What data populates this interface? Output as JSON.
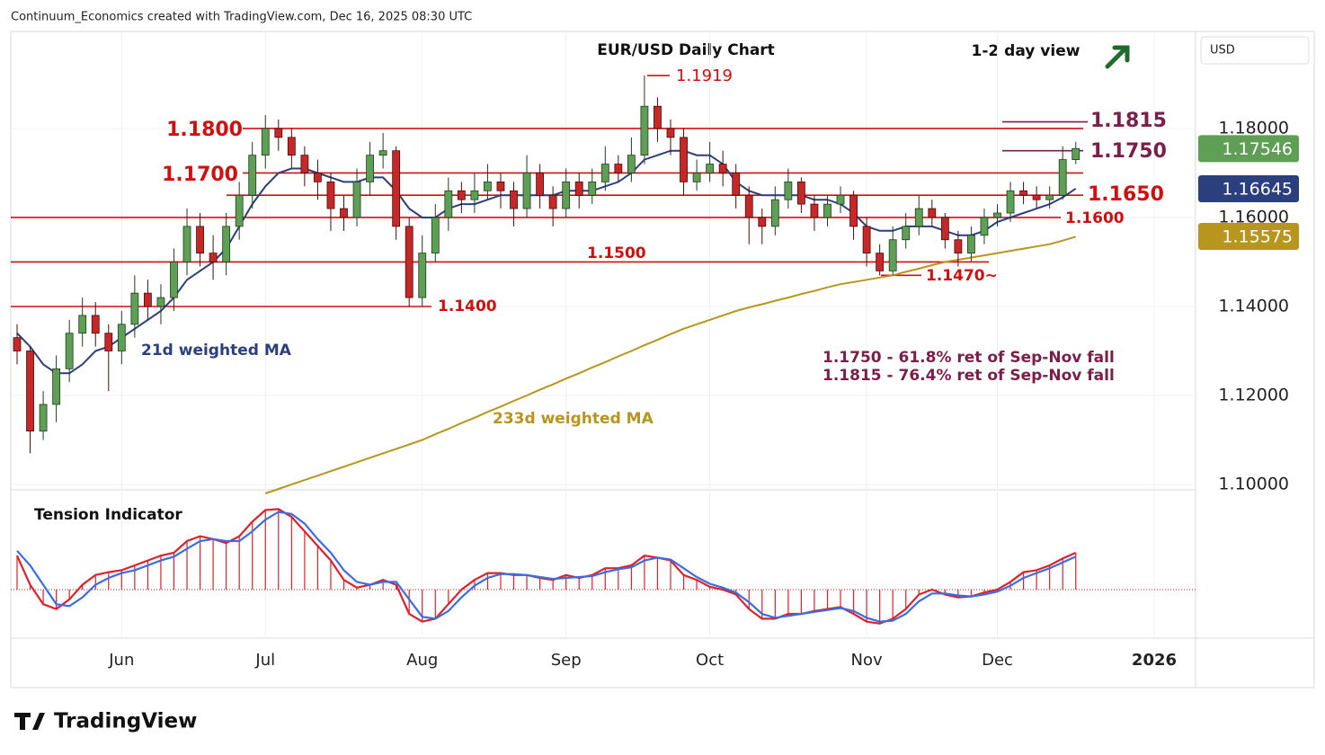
{
  "chart_data": {
    "type": "candlestick",
    "header": "Continuum_Economics created with TradingView.com, Dec 16, 2025 08:30 UTC",
    "title": "EUR/USD Daily Chart",
    "view": "1-2 day view",
    "currency": "USD",
    "brand": "TradingView",
    "ylim": [
      1.0988,
      1.2018
    ],
    "yticks": [
      {
        "value": 1.1,
        "label": "1.10000"
      },
      {
        "value": 1.12,
        "label": "1.12000"
      },
      {
        "value": 1.14,
        "label": "1.14000"
      },
      {
        "value": 1.16,
        "label": "1.16000"
      },
      {
        "value": 1.18,
        "label": "1.18000"
      }
    ],
    "grid": true,
    "categories": [
      null,
      null,
      null,
      null,
      null,
      null,
      null,
      null,
      "Jun",
      null,
      null,
      null,
      null,
      null,
      null,
      null,
      null,
      null,
      null,
      "Jul",
      null,
      null,
      null,
      null,
      null,
      null,
      null,
      null,
      null,
      null,
      null,
      "Aug",
      null,
      null,
      null,
      null,
      null,
      null,
      null,
      null,
      null,
      null,
      "Sep",
      null,
      null,
      null,
      null,
      null,
      null,
      null,
      null,
      null,
      null,
      "Oct",
      null,
      null,
      null,
      null,
      null,
      null,
      null,
      null,
      null,
      null,
      null,
      "Nov",
      null,
      null,
      null,
      null,
      null,
      null,
      null,
      null,
      null,
      "Dec",
      null,
      null,
      null,
      null,
      null,
      null,
      null,
      null,
      null,
      null,
      null,
      "2026"
    ],
    "up_color": "#5f9e55",
    "down_color": "#c62828",
    "ohlc": [
      [
        1.133,
        1.136,
        1.127,
        1.13
      ],
      [
        1.13,
        1.131,
        1.107,
        1.112
      ],
      [
        1.112,
        1.121,
        1.11,
        1.118
      ],
      [
        1.118,
        1.129,
        1.114,
        1.126
      ],
      [
        1.126,
        1.137,
        1.123,
        1.134
      ],
      [
        1.134,
        1.142,
        1.131,
        1.138
      ],
      [
        1.138,
        1.141,
        1.131,
        1.134
      ],
      [
        1.134,
        1.136,
        1.121,
        1.13
      ],
      [
        1.13,
        1.139,
        1.127,
        1.136
      ],
      [
        1.136,
        1.147,
        1.133,
        1.143
      ],
      [
        1.143,
        1.146,
        1.137,
        1.14
      ],
      [
        1.14,
        1.145,
        1.136,
        1.142
      ],
      [
        1.142,
        1.153,
        1.139,
        1.15
      ],
      [
        1.15,
        1.162,
        1.147,
        1.158
      ],
      [
        1.158,
        1.161,
        1.149,
        1.152
      ],
      [
        1.152,
        1.156,
        1.146,
        1.15
      ],
      [
        1.15,
        1.161,
        1.147,
        1.158
      ],
      [
        1.158,
        1.168,
        1.155,
        1.165
      ],
      [
        1.165,
        1.177,
        1.162,
        1.174
      ],
      [
        1.174,
        1.183,
        1.171,
        1.18
      ],
      [
        1.18,
        1.182,
        1.175,
        1.178
      ],
      [
        1.178,
        1.18,
        1.171,
        1.174
      ],
      [
        1.174,
        1.176,
        1.167,
        1.17
      ],
      [
        1.17,
        1.173,
        1.164,
        1.168
      ],
      [
        1.168,
        1.17,
        1.157,
        1.162
      ],
      [
        1.162,
        1.165,
        1.157,
        1.16
      ],
      [
        1.16,
        1.171,
        1.158,
        1.168
      ],
      [
        1.168,
        1.177,
        1.165,
        1.174
      ],
      [
        1.174,
        1.179,
        1.171,
        1.175
      ],
      [
        1.175,
        1.176,
        1.155,
        1.158
      ],
      [
        1.158,
        1.16,
        1.14,
        1.142
      ],
      [
        1.142,
        1.156,
        1.14,
        1.152
      ],
      [
        1.152,
        1.163,
        1.15,
        1.16
      ],
      [
        1.16,
        1.169,
        1.157,
        1.166
      ],
      [
        1.166,
        1.168,
        1.161,
        1.164
      ],
      [
        1.164,
        1.17,
        1.161,
        1.166
      ],
      [
        1.166,
        1.172,
        1.164,
        1.168
      ],
      [
        1.168,
        1.17,
        1.162,
        1.166
      ],
      [
        1.166,
        1.168,
        1.158,
        1.162
      ],
      [
        1.162,
        1.174,
        1.16,
        1.17
      ],
      [
        1.17,
        1.172,
        1.162,
        1.165
      ],
      [
        1.165,
        1.167,
        1.158,
        1.162
      ],
      [
        1.162,
        1.171,
        1.16,
        1.168
      ],
      [
        1.168,
        1.17,
        1.162,
        1.165
      ],
      [
        1.165,
        1.171,
        1.163,
        1.168
      ],
      [
        1.168,
        1.176,
        1.166,
        1.172
      ],
      [
        1.172,
        1.174,
        1.168,
        1.17
      ],
      [
        1.17,
        1.178,
        1.168,
        1.174
      ],
      [
        1.174,
        1.1919,
        1.172,
        1.185
      ],
      [
        1.185,
        1.187,
        1.177,
        1.18
      ],
      [
        1.18,
        1.182,
        1.174,
        1.178
      ],
      [
        1.178,
        1.18,
        1.165,
        1.168
      ],
      [
        1.168,
        1.173,
        1.166,
        1.17
      ],
      [
        1.17,
        1.177,
        1.168,
        1.172
      ],
      [
        1.172,
        1.175,
        1.167,
        1.17
      ],
      [
        1.17,
        1.172,
        1.162,
        1.165
      ],
      [
        1.165,
        1.167,
        1.154,
        1.16
      ],
      [
        1.16,
        1.162,
        1.154,
        1.158
      ],
      [
        1.158,
        1.167,
        1.156,
        1.164
      ],
      [
        1.164,
        1.171,
        1.162,
        1.168
      ],
      [
        1.168,
        1.169,
        1.161,
        1.163
      ],
      [
        1.163,
        1.165,
        1.157,
        1.16
      ],
      [
        1.16,
        1.165,
        1.158,
        1.163
      ],
      [
        1.163,
        1.167,
        1.161,
        1.165
      ],
      [
        1.165,
        1.166,
        1.155,
        1.158
      ],
      [
        1.158,
        1.16,
        1.149,
        1.152
      ],
      [
        1.152,
        1.154,
        1.147,
        1.148
      ],
      [
        1.148,
        1.158,
        1.147,
        1.155
      ],
      [
        1.155,
        1.161,
        1.153,
        1.158
      ],
      [
        1.158,
        1.165,
        1.156,
        1.162
      ],
      [
        1.162,
        1.164,
        1.158,
        1.16
      ],
      [
        1.16,
        1.161,
        1.153,
        1.155
      ],
      [
        1.155,
        1.157,
        1.149,
        1.152
      ],
      [
        1.152,
        1.158,
        1.15,
        1.156
      ],
      [
        1.156,
        1.162,
        1.154,
        1.16
      ],
      [
        1.16,
        1.163,
        1.158,
        1.161
      ],
      [
        1.161,
        1.168,
        1.159,
        1.166
      ],
      [
        1.166,
        1.168,
        1.163,
        1.165
      ],
      [
        1.165,
        1.167,
        1.162,
        1.164
      ],
      [
        1.164,
        1.167,
        1.162,
        1.165
      ],
      [
        1.165,
        1.176,
        1.164,
        1.173
      ],
      [
        1.173,
        1.177,
        1.172,
        1.1755
      ],
      null,
      null,
      null,
      null,
      null,
      null
    ],
    "series": [
      {
        "name": "21d weighted MA",
        "color": "#2b3f7e",
        "values": [
          1.134,
          1.131,
          1.127,
          1.125,
          1.125,
          1.127,
          1.13,
          1.131,
          1.133,
          1.135,
          1.137,
          1.139,
          1.142,
          1.146,
          1.148,
          1.15,
          1.153,
          1.158,
          1.163,
          1.167,
          1.17,
          1.171,
          1.171,
          1.17,
          1.169,
          1.168,
          1.168,
          1.169,
          1.169,
          1.166,
          1.162,
          1.16,
          1.16,
          1.162,
          1.163,
          1.163,
          1.164,
          1.165,
          1.165,
          1.165,
          1.165,
          1.165,
          1.166,
          1.166,
          1.166,
          1.167,
          1.168,
          1.17,
          1.173,
          1.174,
          1.175,
          1.175,
          1.174,
          1.174,
          1.172,
          1.168,
          1.166,
          1.165,
          1.165,
          1.165,
          1.165,
          1.164,
          1.164,
          1.163,
          1.161,
          1.158,
          1.157,
          1.157,
          1.158,
          1.158,
          1.158,
          1.157,
          1.156,
          1.156,
          1.157,
          1.159,
          1.16,
          1.161,
          1.162,
          1.163,
          1.1645,
          1.1665,
          null,
          null,
          null,
          null,
          null,
          null
        ]
      },
      {
        "name": "233d weighted MA",
        "color": "#b8961e",
        "values": [
          null,
          null,
          null,
          null,
          null,
          null,
          null,
          null,
          null,
          null,
          null,
          null,
          null,
          null,
          null,
          null,
          null,
          null,
          null,
          1.098,
          1.099,
          1.1,
          1.101,
          1.102,
          1.103,
          1.104,
          1.105,
          1.106,
          1.107,
          1.108,
          1.109,
          1.11,
          1.1113,
          1.1125,
          1.1138,
          1.115,
          1.1163,
          1.1175,
          1.1188,
          1.12,
          1.1213,
          1.1225,
          1.1238,
          1.125,
          1.1263,
          1.1275,
          1.1288,
          1.13,
          1.1313,
          1.1325,
          1.1338,
          1.135,
          1.136,
          1.137,
          1.138,
          1.139,
          1.1398,
          1.1405,
          1.1413,
          1.142,
          1.1428,
          1.1435,
          1.1443,
          1.145,
          1.1455,
          1.146,
          1.1465,
          1.147,
          1.1478,
          1.1485,
          1.1493,
          1.15,
          1.1505,
          1.151,
          1.1515,
          1.152,
          1.1525,
          1.153,
          1.1535,
          1.154,
          1.1548,
          1.1557,
          null,
          null,
          null,
          null,
          null,
          null
        ]
      }
    ],
    "price_badges": [
      {
        "value": 1.17546,
        "color": "#5f9e55"
      },
      {
        "value": 1.16645,
        "color": "#2b3f7e"
      },
      {
        "value": 1.15575,
        "color": "#b8961e"
      }
    ],
    "levels": [
      {
        "value": 1.1919,
        "label": "1.1919",
        "color": "#d01010"
      },
      {
        "value": 1.18,
        "label": "1.1800",
        "color": "#d01010"
      },
      {
        "value": 1.17,
        "label": "1.1700",
        "color": "#d01010"
      },
      {
        "value": 1.165,
        "label": "1.1650",
        "color": "#d01010"
      },
      {
        "value": 1.16,
        "label": "1.1600",
        "color": "#d01010"
      },
      {
        "value": 1.15,
        "label": "1.1500",
        "color": "#d01010"
      },
      {
        "value": 1.14,
        "label": "1.1400",
        "color": "#d01010"
      },
      {
        "value": 1.147,
        "label": "1.1470~",
        "color": "#d01010"
      },
      {
        "value": 1.1815,
        "label": "1.1815",
        "color": "#7b1e4a"
      },
      {
        "value": 1.175,
        "label": "1.1750",
        "color": "#7b1e4a"
      }
    ],
    "notes": [
      "1.1750 - 61.8% ret of Sep-Nov fall",
      "1.1815 - 76.4% ret of Sep-Nov fall"
    ],
    "tension": {
      "title": "Tension Indicator",
      "ylim": [
        -0.5,
        1.0
      ],
      "series": [
        {
          "color": "#e0202a",
          "values": [
            0.35,
            0.05,
            -0.15,
            -0.2,
            -0.1,
            0.05,
            0.15,
            0.18,
            0.2,
            0.25,
            0.3,
            0.35,
            0.38,
            0.5,
            0.55,
            0.52,
            0.48,
            0.55,
            0.7,
            0.82,
            0.83,
            0.75,
            0.6,
            0.45,
            0.3,
            0.1,
            0.02,
            0.05,
            0.1,
            0.05,
            -0.25,
            -0.33,
            -0.3,
            -0.15,
            0.0,
            0.1,
            0.17,
            0.17,
            0.15,
            0.15,
            0.12,
            0.1,
            0.15,
            0.12,
            0.15,
            0.22,
            0.22,
            0.25,
            0.35,
            0.33,
            0.3,
            0.15,
            0.1,
            0.03,
            0.0,
            -0.05,
            -0.2,
            -0.3,
            -0.3,
            -0.25,
            -0.25,
            -0.22,
            -0.2,
            -0.18,
            -0.25,
            -0.33,
            -0.35,
            -0.3,
            -0.2,
            -0.05,
            0.0,
            -0.05,
            -0.08,
            -0.07,
            -0.03,
            0.0,
            0.08,
            0.18,
            0.2,
            0.25,
            0.32,
            0.38,
            null,
            null,
            null,
            null,
            null,
            null
          ]
        },
        {
          "color": "#3a6ee0",
          "values": [
            0.4,
            0.25,
            0.05,
            -0.15,
            -0.17,
            -0.08,
            0.05,
            0.12,
            0.17,
            0.2,
            0.25,
            0.3,
            0.34,
            0.42,
            0.5,
            0.52,
            0.5,
            0.5,
            0.6,
            0.72,
            0.8,
            0.78,
            0.68,
            0.52,
            0.38,
            0.2,
            0.08,
            0.05,
            0.08,
            0.08,
            -0.1,
            -0.28,
            -0.3,
            -0.22,
            -0.08,
            0.04,
            0.12,
            0.16,
            0.16,
            0.15,
            0.13,
            0.11,
            0.12,
            0.13,
            0.14,
            0.18,
            0.21,
            0.23,
            0.3,
            0.33,
            0.31,
            0.22,
            0.13,
            0.06,
            0.02,
            -0.03,
            -0.13,
            -0.25,
            -0.29,
            -0.27,
            -0.25,
            -0.23,
            -0.21,
            -0.19,
            -0.22,
            -0.29,
            -0.33,
            -0.32,
            -0.25,
            -0.12,
            -0.04,
            -0.04,
            -0.06,
            -0.07,
            -0.05,
            -0.02,
            0.04,
            0.12,
            0.17,
            0.22,
            0.28,
            0.34,
            null,
            null,
            null,
            null,
            null,
            null
          ]
        }
      ]
    }
  }
}
